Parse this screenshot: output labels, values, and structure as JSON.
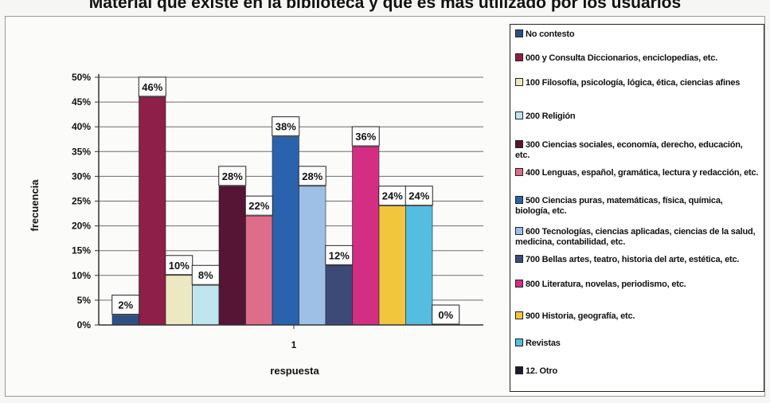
{
  "title": "Material que existe en la biblioteca y que es más utilizado por los usuarios",
  "chart_data": {
    "type": "bar",
    "categories": [
      "1"
    ],
    "xlabel": "respuesta",
    "ylabel": "frecuencia",
    "ylim": [
      0,
      50
    ],
    "yticks": [
      "0%",
      "5%",
      "10%",
      "15%",
      "20%",
      "25%",
      "30%",
      "35%",
      "40%",
      "45%",
      "50%"
    ],
    "grid": true,
    "legend_position": "right",
    "series": [
      {
        "name": "No contesto",
        "value": 2,
        "label": "2%",
        "color": "#2e4f82"
      },
      {
        "name": "000 y Consulta Diccionarios, enciclopedias, etc.",
        "value": 46,
        "label": "46%",
        "color": "#8e1f48"
      },
      {
        "name": "100 Filosofía, psicología, lógica, ética, ciencias afines",
        "value": 10,
        "label": "10%",
        "color": "#ece8c2"
      },
      {
        "name": "200 Religión",
        "value": 8,
        "label": "8%",
        "color": "#bfe6ee"
      },
      {
        "name": "300 Ciencias sociales, economía, derecho, educación, etc.",
        "value": 28,
        "label": "28%",
        "color": "#561535"
      },
      {
        "name": "400 Lenguas, español, gramática, lectura y redacción, etc.",
        "value": 22,
        "label": "22%",
        "color": "#de6d8c"
      },
      {
        "name": "500 Ciencias puras, matemáticas, física, química, biología, etc.",
        "value": 38,
        "label": "38%",
        "color": "#2b62ad"
      },
      {
        "name": "600 Tecnologías, ciencias aplicadas, ciencias de la salud, medicina, contabilidad, etc.",
        "value": 28,
        "label": "28%",
        "color": "#9ec0e6"
      },
      {
        "name": "700 Bellas artes, teatro, historia del arte, estética, etc.",
        "value": 12,
        "label": "12%",
        "color": "#3d4a78"
      },
      {
        "name": "800 Literatura, novelas, periodismo, etc.",
        "value": 36,
        "label": "36%",
        "color": "#d42e84"
      },
      {
        "name": "900 Historia, geografía, etc.",
        "value": 24,
        "label": "24%",
        "color": "#f1c63c"
      },
      {
        "name": "Revistas",
        "value": 24,
        "label": "24%",
        "color": "#54bde0"
      },
      {
        "name": "12. Otro",
        "value": 0,
        "label": "0%",
        "color": "#1c1c2e"
      }
    ]
  },
  "legend_labels": [
    "No contesto",
    "000 y Consulta Diccionarios, enciclopedias, etc.",
    "100 Filosofía, psicología, lógica, ética, ciencias afines",
    "200 Religión",
    "300 Ciencias sociales, economía, derecho, educación, etc.",
    "400 Lenguas, español, gramática, lectura y redacción, etc.",
    "500 Ciencias puras, matemáticas, física, química, biología, etc.",
    "600 Tecnologías, ciencias aplicadas, ciencias de la salud, medicina, contabilidad, etc.",
    "700 Bellas artes, teatro, historia del arte, estética, etc.",
    "800 Literatura, novelas, periodismo, etc.",
    "900 Historia, geografía, etc.",
    "Revistas",
    "12. Otro"
  ]
}
